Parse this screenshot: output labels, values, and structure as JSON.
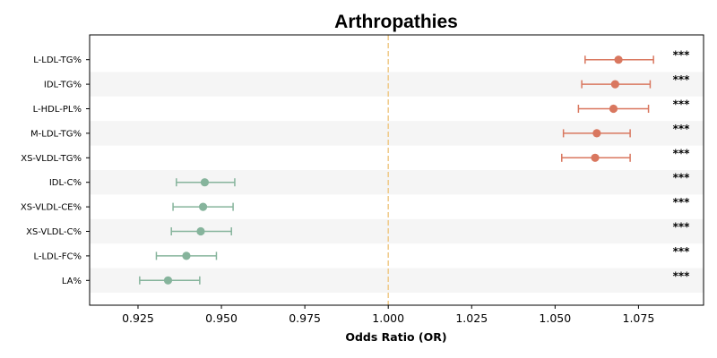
{
  "chart_data": {
    "type": "forest",
    "title": "Arthropathies",
    "xlabel": "Odds Ratio (OR)",
    "xlim": [
      0.9105,
      1.0945
    ],
    "xticks": [
      0.925,
      0.95,
      0.975,
      1.0,
      1.025,
      1.05,
      1.075
    ],
    "xtick_labels": [
      "0.925",
      "0.950",
      "0.975",
      "1.000",
      "1.025",
      "1.050",
      "1.075"
    ],
    "reference_line": 1.0,
    "colors": {
      "positive": "#d9775f",
      "negative": "#86b49c",
      "reference": "#f0c987",
      "band": "#f5f5f5"
    },
    "rows": [
      {
        "label": "L-LDL-TG%",
        "or": 1.069,
        "lo": 1.059,
        "hi": 1.0795,
        "sig": "***",
        "direction": "positive"
      },
      {
        "label": "IDL-TG%",
        "or": 1.068,
        "lo": 1.058,
        "hi": 1.0785,
        "sig": "***",
        "direction": "positive"
      },
      {
        "label": "L-HDL-PL%",
        "or": 1.0675,
        "lo": 1.057,
        "hi": 1.078,
        "sig": "***",
        "direction": "positive"
      },
      {
        "label": "M-LDL-TG%",
        "or": 1.0625,
        "lo": 1.0525,
        "hi": 1.0725,
        "sig": "***",
        "direction": "positive"
      },
      {
        "label": "XS-VLDL-TG%",
        "or": 1.062,
        "lo": 1.052,
        "hi": 1.0725,
        "sig": "***",
        "direction": "positive"
      },
      {
        "label": "IDL-C%",
        "or": 0.945,
        "lo": 0.9365,
        "hi": 0.954,
        "sig": "***",
        "direction": "negative"
      },
      {
        "label": "XS-VLDL-CE%",
        "or": 0.9445,
        "lo": 0.9355,
        "hi": 0.9535,
        "sig": "***",
        "direction": "negative"
      },
      {
        "label": "XS-VLDL-C%",
        "or": 0.9438,
        "lo": 0.935,
        "hi": 0.953,
        "sig": "***",
        "direction": "negative"
      },
      {
        "label": "L-LDL-FC%",
        "or": 0.9395,
        "lo": 0.9305,
        "hi": 0.9485,
        "sig": "***",
        "direction": "negative"
      },
      {
        "label": "LA%",
        "or": 0.934,
        "lo": 0.9255,
        "hi": 0.9435,
        "sig": "***",
        "direction": "negative"
      }
    ]
  }
}
